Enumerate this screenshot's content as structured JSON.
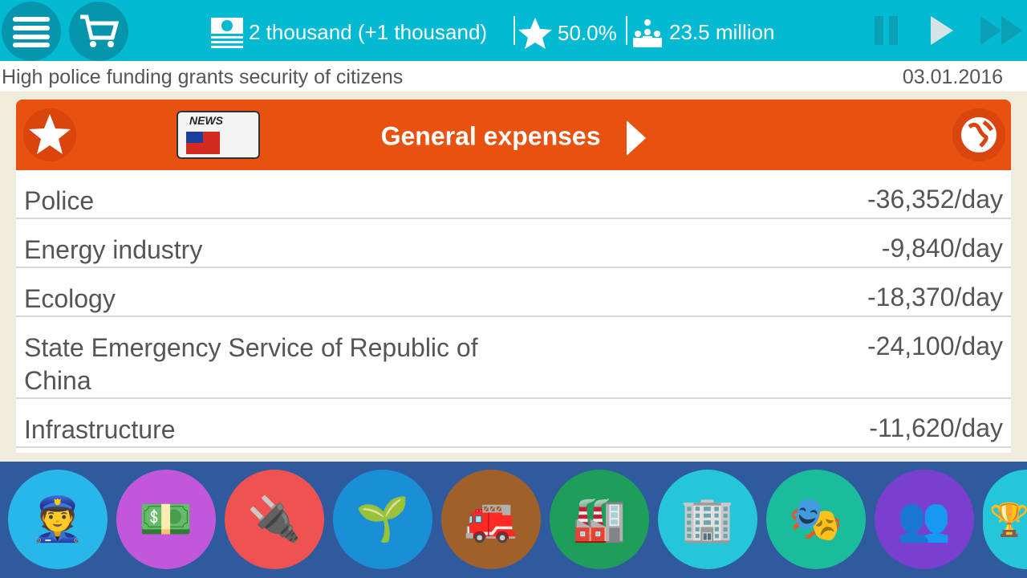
{
  "topbar": {
    "money": "2 thousand (+1 thousand)",
    "rating": "50.0%",
    "population": "23.5 million"
  },
  "news": {
    "text": "High police funding grants security of citizens",
    "date": "03.01.2016"
  },
  "panel": {
    "title": "General expenses",
    "news_badge": "NEWS",
    "rows": [
      {
        "label": "Police",
        "value": "-36,352/day"
      },
      {
        "label": "Energy industry",
        "value": "-9,840/day"
      },
      {
        "label": "Ecology",
        "value": "-18,370/day"
      },
      {
        "label": "State Emergency Service of Republic of China",
        "value": "-24,100/day"
      },
      {
        "label": "Infrastructure",
        "value": "-11,620/day"
      }
    ]
  },
  "categories": [
    {
      "name": "police",
      "icon": "👮",
      "color": "#29b6e8"
    },
    {
      "name": "finance",
      "icon": "💵",
      "color": "#c158dc"
    },
    {
      "name": "energy",
      "icon": "🔌",
      "color": "#f05252"
    },
    {
      "name": "ecology",
      "icon": "🌱",
      "color": "#1a8fd6"
    },
    {
      "name": "emergency",
      "icon": "🚒",
      "color": "#a0602a"
    },
    {
      "name": "industry",
      "icon": "🏭",
      "color": "#1e9e5a"
    },
    {
      "name": "housing",
      "icon": "🏢",
      "color": "#26c6da"
    },
    {
      "name": "culture",
      "icon": "🎭",
      "color": "#1abc9c"
    },
    {
      "name": "society",
      "icon": "👥",
      "color": "#7b3fd0"
    },
    {
      "name": "achievements",
      "icon": "🏆",
      "color": "#26c6da"
    }
  ]
}
